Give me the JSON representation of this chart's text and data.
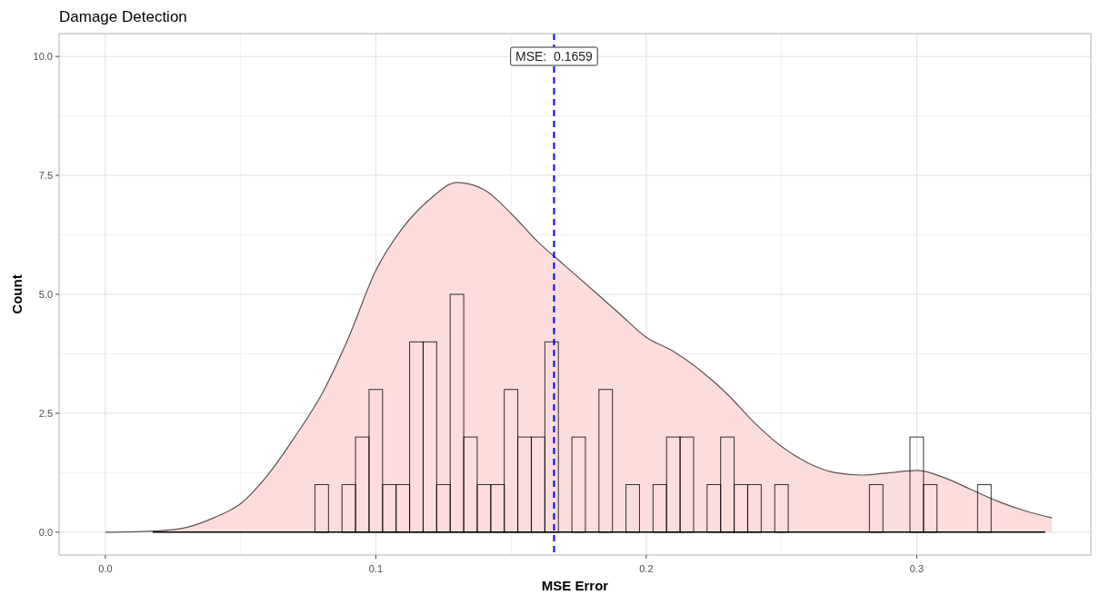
{
  "chart_data": {
    "type": "histogram",
    "title": "Damage Detection",
    "xlabel": "MSE Error",
    "ylabel": "Count",
    "xlim": [
      -0.0171,
      0.3644
    ],
    "ylim": [
      -0.48,
      10.48
    ],
    "xticks": [
      {
        "value": 0,
        "label": "0.0"
      },
      {
        "value": 0.1,
        "label": "0.1"
      },
      {
        "value": 0.2,
        "label": "0.2"
      },
      {
        "value": 0.3,
        "label": "0.3"
      }
    ],
    "yticks": [
      {
        "value": 0,
        "label": "0.0"
      },
      {
        "value": 2.5,
        "label": "2.5"
      },
      {
        "value": 5,
        "label": "5.0"
      },
      {
        "value": 7.5,
        "label": "7.5"
      },
      {
        "value": 10,
        "label": "10.0"
      }
    ],
    "grid": true,
    "series": [
      {
        "type": "area",
        "color": "#fddcdc",
        "x": [
          0,
          0.02,
          0.03,
          0.04,
          0.05,
          0.06,
          0.07,
          0.08,
          0.09,
          0.1,
          0.11,
          0.12,
          0.13,
          0.14,
          0.15,
          0.16,
          0.17,
          0.18,
          0.19,
          0.2,
          0.21,
          0.22,
          0.23,
          0.24,
          0.25,
          0.26,
          0.27,
          0.28,
          0.29,
          0.3,
          0.31,
          0.32,
          0.33,
          0.34,
          0.35
        ],
        "values": [
          0,
          0.03,
          0.1,
          0.3,
          0.6,
          1.2,
          2.0,
          2.9,
          4.1,
          5.5,
          6.4,
          7.0,
          7.35,
          7.2,
          6.7,
          6.1,
          5.6,
          5.1,
          4.6,
          4.1,
          3.8,
          3.4,
          2.9,
          2.3,
          1.8,
          1.45,
          1.25,
          1.2,
          1.25,
          1.3,
          1.15,
          0.9,
          0.65,
          0.45,
          0.3
        ]
      },
      {
        "color": "#000000",
        "bins": [
          0.0175,
          0.0225,
          0.0275,
          0.0325,
          0.0375,
          0.0425,
          0.0475,
          0.0525,
          0.0575,
          0.0625,
          0.0675,
          0.0725,
          0.0775,
          0.0825,
          0.0875,
          0.0925,
          0.0975,
          0.1025,
          0.1075,
          0.1125,
          0.1175,
          0.1225,
          0.1275,
          0.1325,
          0.1375,
          0.1425,
          0.1475,
          0.1525,
          0.1575,
          0.1625,
          0.1675,
          0.1725,
          0.1775,
          0.1825,
          0.1875,
          0.1925,
          0.1975,
          0.2025,
          0.2075,
          0.2125,
          0.2175,
          0.2225,
          0.2275,
          0.2325,
          0.2375,
          0.2425,
          0.2475,
          0.2525,
          0.2575,
          0.2625,
          0.2675,
          0.2725,
          0.2775,
          0.2825,
          0.2875,
          0.2925,
          0.2975,
          0.3025,
          0.3075,
          0.3125,
          0.3175,
          0.3225,
          0.3275,
          0.3325,
          0.3375,
          0.3425,
          0.3475
        ],
        "values": [
          0,
          0,
          0,
          0,
          0,
          0,
          0,
          0,
          0,
          0,
          0,
          0,
          1,
          0,
          1,
          2,
          3,
          1,
          1,
          4,
          4,
          1,
          5,
          2,
          1,
          1,
          3,
          2,
          2,
          4,
          0,
          2,
          0,
          3,
          0,
          1,
          0,
          1,
          2,
          2,
          0,
          1,
          2,
          1,
          1,
          0,
          1,
          0,
          0,
          0,
          0,
          0,
          0,
          1,
          0,
          0,
          2,
          1,
          0,
          0,
          0,
          1,
          0,
          0,
          0,
          0
        ]
      }
    ],
    "ref_lines": [
      {
        "axis": "x",
        "value": 0.1659,
        "label": "MSE:  0.1659",
        "color": "#0000ff",
        "line_style": "dashed"
      }
    ]
  }
}
